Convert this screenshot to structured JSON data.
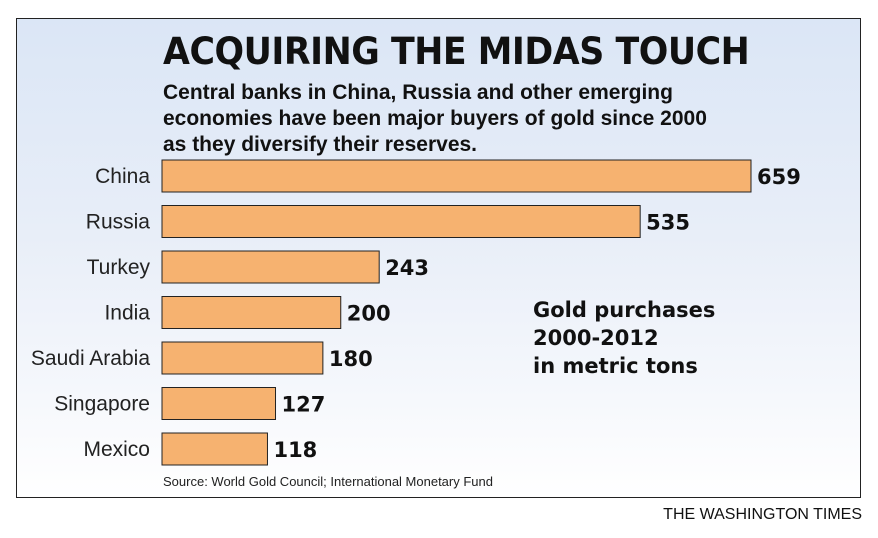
{
  "chart_data": {
    "type": "bar",
    "orientation": "horizontal",
    "title": "ACQUIRING THE MIDAS TOUCH",
    "subtitle_lines": [
      "Central banks in China, Russia and other emerging",
      "economies have been major buyers of gold since 2000",
      "as they diversify their reserves."
    ],
    "categories": [
      "China",
      "Russia",
      "Turkey",
      "India",
      "Saudi Arabia",
      "Singapore",
      "Mexico"
    ],
    "values": [
      659,
      535,
      243,
      200,
      180,
      127,
      118
    ],
    "annotation_lines": [
      "Gold purchases",
      "2000-2012",
      "in metric tons"
    ],
    "source": "Source: World Gold Council; International Monetary Fund",
    "xlim": [
      0,
      659
    ],
    "grid": false,
    "bar_color": "#f6b270"
  },
  "credit": "THE WASHINGTON TIMES"
}
